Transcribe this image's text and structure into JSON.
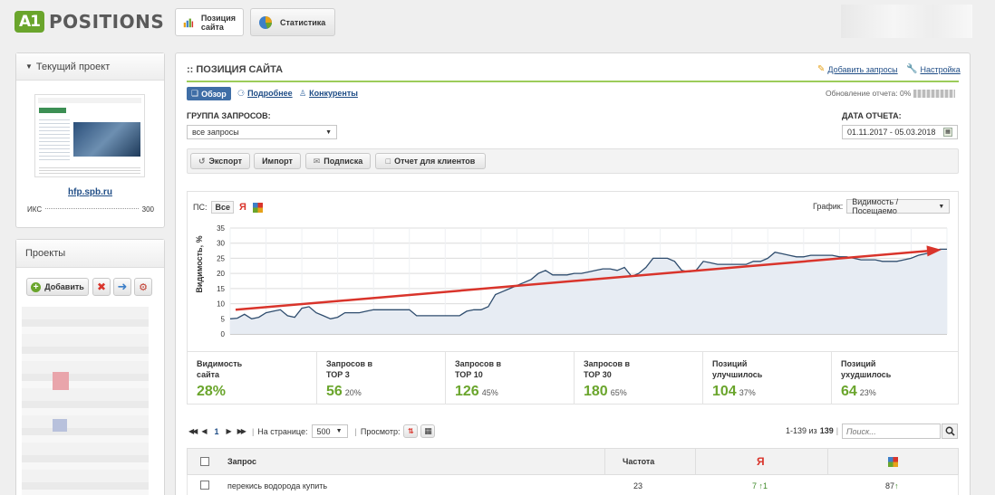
{
  "app": {
    "logo_left": "A1",
    "logo_right": "POSITIONS"
  },
  "header_tabs": [
    {
      "label_line1": "Позиция",
      "label_line2": "сайта"
    },
    {
      "label": "Статистика"
    }
  ],
  "sidebar": {
    "current_project": {
      "title": "Текущий проект",
      "site": "hfp.spb.ru",
      "iks_label": "ИКС",
      "iks_value": "300"
    },
    "projects": {
      "title": "Проекты",
      "add_label": "Добавить"
    }
  },
  "main": {
    "title": ":: ПОЗИЦИЯ САЙТА",
    "add_queries": "Добавить запросы",
    "settings": "Настройка",
    "tabs": [
      "Обзор",
      "Подробнее",
      "Конкуренты"
    ],
    "report_update": "Обновление отчета: 0%",
    "group_label": "ГРУППА ЗАПРОСОВ:",
    "group_value": "все запросы",
    "date_label": "ДАТА ОТЧЕТА:",
    "date_value": "01.11.2017 - 05.03.2018",
    "toolbar": [
      "Экспорт",
      "Импорт",
      "Подписка",
      "Отчет для клиентов"
    ]
  },
  "chart_controls": {
    "ps_label": "ПС:",
    "all_label": "Все",
    "yandex_label": "Я",
    "graph_label": "График:",
    "graph_value": "Видимость / Посещаемо"
  },
  "chart_data": {
    "type": "area",
    "ylabel": "Видимость, %",
    "ylim": [
      0,
      35
    ],
    "yticks": [
      "35",
      "30",
      "25",
      "20",
      "15",
      "10",
      "5",
      "0"
    ],
    "x": [
      0,
      1,
      2,
      3,
      4,
      5,
      6,
      7,
      8,
      9,
      10,
      11,
      12,
      13,
      14,
      15,
      16,
      17,
      18,
      19,
      20,
      21,
      22,
      23,
      24,
      25,
      26,
      27,
      28,
      29,
      30,
      31,
      32,
      33,
      34,
      35,
      36,
      37,
      38,
      39,
      40,
      41,
      42,
      43,
      44,
      45,
      46,
      47,
      48,
      49,
      50,
      51,
      52,
      53,
      54,
      55,
      56,
      57,
      58,
      59,
      60,
      61,
      62,
      63,
      64,
      65,
      66,
      67,
      68,
      69,
      70,
      71,
      72,
      73,
      74,
      75,
      76,
      77,
      78,
      79,
      80,
      81,
      82,
      83,
      84,
      85,
      86,
      87,
      88,
      89,
      90,
      91,
      92,
      93,
      94,
      95,
      96,
      97,
      98,
      99,
      100
    ],
    "series": [
      {
        "name": "Видимость сайта",
        "values": [
          5,
          5.2,
          6.5,
          5,
          5.5,
          7,
          7.5,
          8,
          6,
          5.5,
          8.5,
          9,
          7,
          6,
          5,
          5.5,
          7,
          7,
          7,
          7.5,
          8,
          8,
          8,
          8,
          8,
          8,
          6,
          6,
          6,
          6,
          6,
          6,
          6,
          7.5,
          8,
          8,
          9,
          13,
          14,
          15,
          16,
          17,
          18,
          20,
          21,
          19.5,
          19.5,
          19.5,
          20,
          20,
          20.5,
          21,
          21.5,
          21.5,
          21,
          22,
          19,
          20,
          22,
          25,
          25,
          25,
          24,
          21,
          20.5,
          21,
          24,
          23.5,
          23,
          23,
          23,
          23,
          23,
          24,
          24,
          25,
          27,
          26.5,
          26,
          25.5,
          25.5,
          26,
          26,
          26,
          26,
          25.5,
          25.5,
          25,
          24.5,
          24.5,
          24.5,
          24,
          24,
          24,
          24.5,
          25,
          26,
          26.5,
          27,
          28,
          28
        ]
      },
      {
        "name": "Тренд",
        "values": [
          8,
          8.2,
          8.4,
          8.6,
          8.8,
          9,
          9.2,
          9.4,
          9.6,
          9.8,
          10,
          10.2,
          10.4,
          10.6,
          10.8,
          11,
          11.2,
          11.4,
          11.6,
          11.8,
          12,
          12.2,
          12.4,
          12.6,
          12.8,
          13,
          13.2,
          13.4,
          13.6,
          13.8,
          14,
          14.2,
          14.4,
          14.6,
          14.8,
          15,
          15.2,
          15.4,
          15.6,
          15.8,
          16,
          16.2,
          16.4,
          16.6,
          16.8,
          17,
          17.2,
          17.4,
          17.6,
          17.8,
          18,
          18.2,
          18.4,
          18.6,
          18.8,
          19,
          19.2,
          19.4,
          19.6,
          19.8,
          20,
          20.2,
          20.4,
          20.6,
          20.8,
          21,
          21.2,
          21.4,
          21.6,
          21.8,
          22,
          22.2,
          22.4,
          22.6,
          22.8,
          23,
          23.2,
          23.4,
          23.6,
          23.8,
          24,
          24.2,
          24.4,
          24.6,
          24.8,
          25,
          25.2,
          25.4,
          25.6,
          25.8,
          26,
          26.2,
          26.4,
          26.6,
          26.8,
          27,
          27.2,
          27.4,
          27.6,
          27.8,
          28
        ]
      }
    ]
  },
  "stats": [
    {
      "label1": "Видимость",
      "label2": "сайта",
      "value": "28%",
      "pct": ""
    },
    {
      "label1": "Запросов в",
      "label2": "ТОР 3",
      "value": "56",
      "pct": "20%"
    },
    {
      "label1": "Запросов в",
      "label2": "ТОР 10",
      "value": "126",
      "pct": "45%"
    },
    {
      "label1": "Запросов в",
      "label2": "ТОР 30",
      "value": "180",
      "pct": "65%"
    },
    {
      "label1": "Позиций",
      "label2": "улучшилось",
      "value": "104",
      "pct": "37%"
    },
    {
      "label1": "Позиций",
      "label2": "ухудшилось",
      "value": "64",
      "pct": "23%"
    }
  ],
  "pagination": {
    "current_page": "1",
    "per_page_label": "На странице:",
    "per_page_value": "500",
    "view_label": "Просмотр:",
    "range": "1-139 из",
    "total": "139",
    "search_placeholder": "Поиск..."
  },
  "table": {
    "headers": {
      "query": "Запрос",
      "freq": "Частота",
      "yandex": "Я"
    },
    "rows": [
      {
        "query": "перекись водорода купить",
        "freq": "23",
        "yandex": "7",
        "yandex_delta": "1",
        "google": "87"
      }
    ]
  },
  "colors": {
    "accent": "#6aa52c",
    "trend": "#d9342b",
    "line": "#2f4d6e",
    "link": "#1f4d86"
  }
}
